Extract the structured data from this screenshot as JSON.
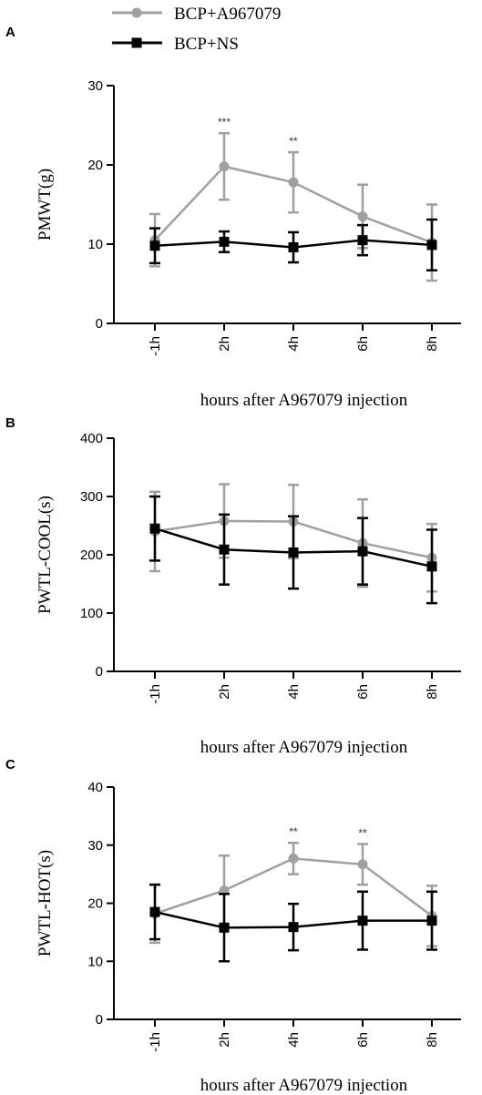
{
  "legend": [
    {
      "label": "BCP+A967079",
      "color": "#a0a0a0",
      "marker": "circle"
    },
    {
      "label": "BCP+NS",
      "color": "#000000",
      "marker": "square"
    }
  ],
  "chart_data": [
    {
      "type": "line",
      "panel": "A",
      "ylabel": "PMWT(g)",
      "xlabel": "hours after A967079 injection",
      "categories": [
        "-1h",
        "2h",
        "4h",
        "6h",
        "8h"
      ],
      "ylim": [
        0,
        30
      ],
      "yticks": [
        0,
        10,
        20,
        30
      ],
      "series": [
        {
          "name": "BCP+A967079",
          "color": "#a0a0a0",
          "marker": "circle",
          "values": [
            10.5,
            19.8,
            17.8,
            13.5,
            10.2
          ],
          "errors": [
            3.3,
            4.2,
            3.8,
            4.0,
            4.8
          ]
        },
        {
          "name": "BCP+NS",
          "color": "#000000",
          "marker": "square",
          "values": [
            9.8,
            10.3,
            9.6,
            10.5,
            9.9
          ],
          "errors": [
            2.2,
            1.3,
            1.9,
            1.9,
            3.2
          ]
        }
      ],
      "annotations": [
        {
          "category": "2h",
          "text": "***"
        },
        {
          "category": "4h",
          "text": "**"
        }
      ]
    },
    {
      "type": "line",
      "panel": "B",
      "ylabel": "PWTL-COOL(s)",
      "xlabel": "hours after A967079 injection",
      "categories": [
        "-1h",
        "2h",
        "4h",
        "6h",
        "8h"
      ],
      "ylim": [
        0,
        400
      ],
      "yticks": [
        0,
        100,
        200,
        300,
        400
      ],
      "series": [
        {
          "name": "BCP+A967079",
          "color": "#a0a0a0",
          "marker": "circle",
          "values": [
            240,
            258,
            257,
            220,
            195
          ],
          "errors": [
            68,
            63,
            63,
            75,
            58
          ]
        },
        {
          "name": "BCP+NS",
          "color": "#000000",
          "marker": "square",
          "values": [
            245,
            209,
            204,
            206,
            180
          ],
          "errors": [
            55,
            60,
            62,
            57,
            63
          ]
        }
      ],
      "annotations": []
    },
    {
      "type": "line",
      "panel": "C",
      "ylabel": "PWTL-HOT(s)",
      "xlabel": "hours after A967079 injection",
      "categories": [
        "-1h",
        "2h",
        "4h",
        "6h",
        "8h"
      ],
      "ylim": [
        0,
        40
      ],
      "yticks": [
        0,
        10,
        20,
        30,
        40
      ],
      "series": [
        {
          "name": "BCP+A967079",
          "color": "#a0a0a0",
          "marker": "circle",
          "values": [
            18.2,
            22.2,
            27.7,
            26.7,
            17.8
          ],
          "errors": [
            5.0,
            6.0,
            2.7,
            3.5,
            5.2
          ]
        },
        {
          "name": "BCP+NS",
          "color": "#000000",
          "marker": "square",
          "values": [
            18.5,
            15.8,
            15.9,
            17.0,
            17.0
          ],
          "errors": [
            4.7,
            5.8,
            4.0,
            5.0,
            5.0
          ]
        }
      ],
      "annotations": [
        {
          "category": "4h",
          "text": "**"
        },
        {
          "category": "6h",
          "text": "**"
        }
      ]
    }
  ]
}
